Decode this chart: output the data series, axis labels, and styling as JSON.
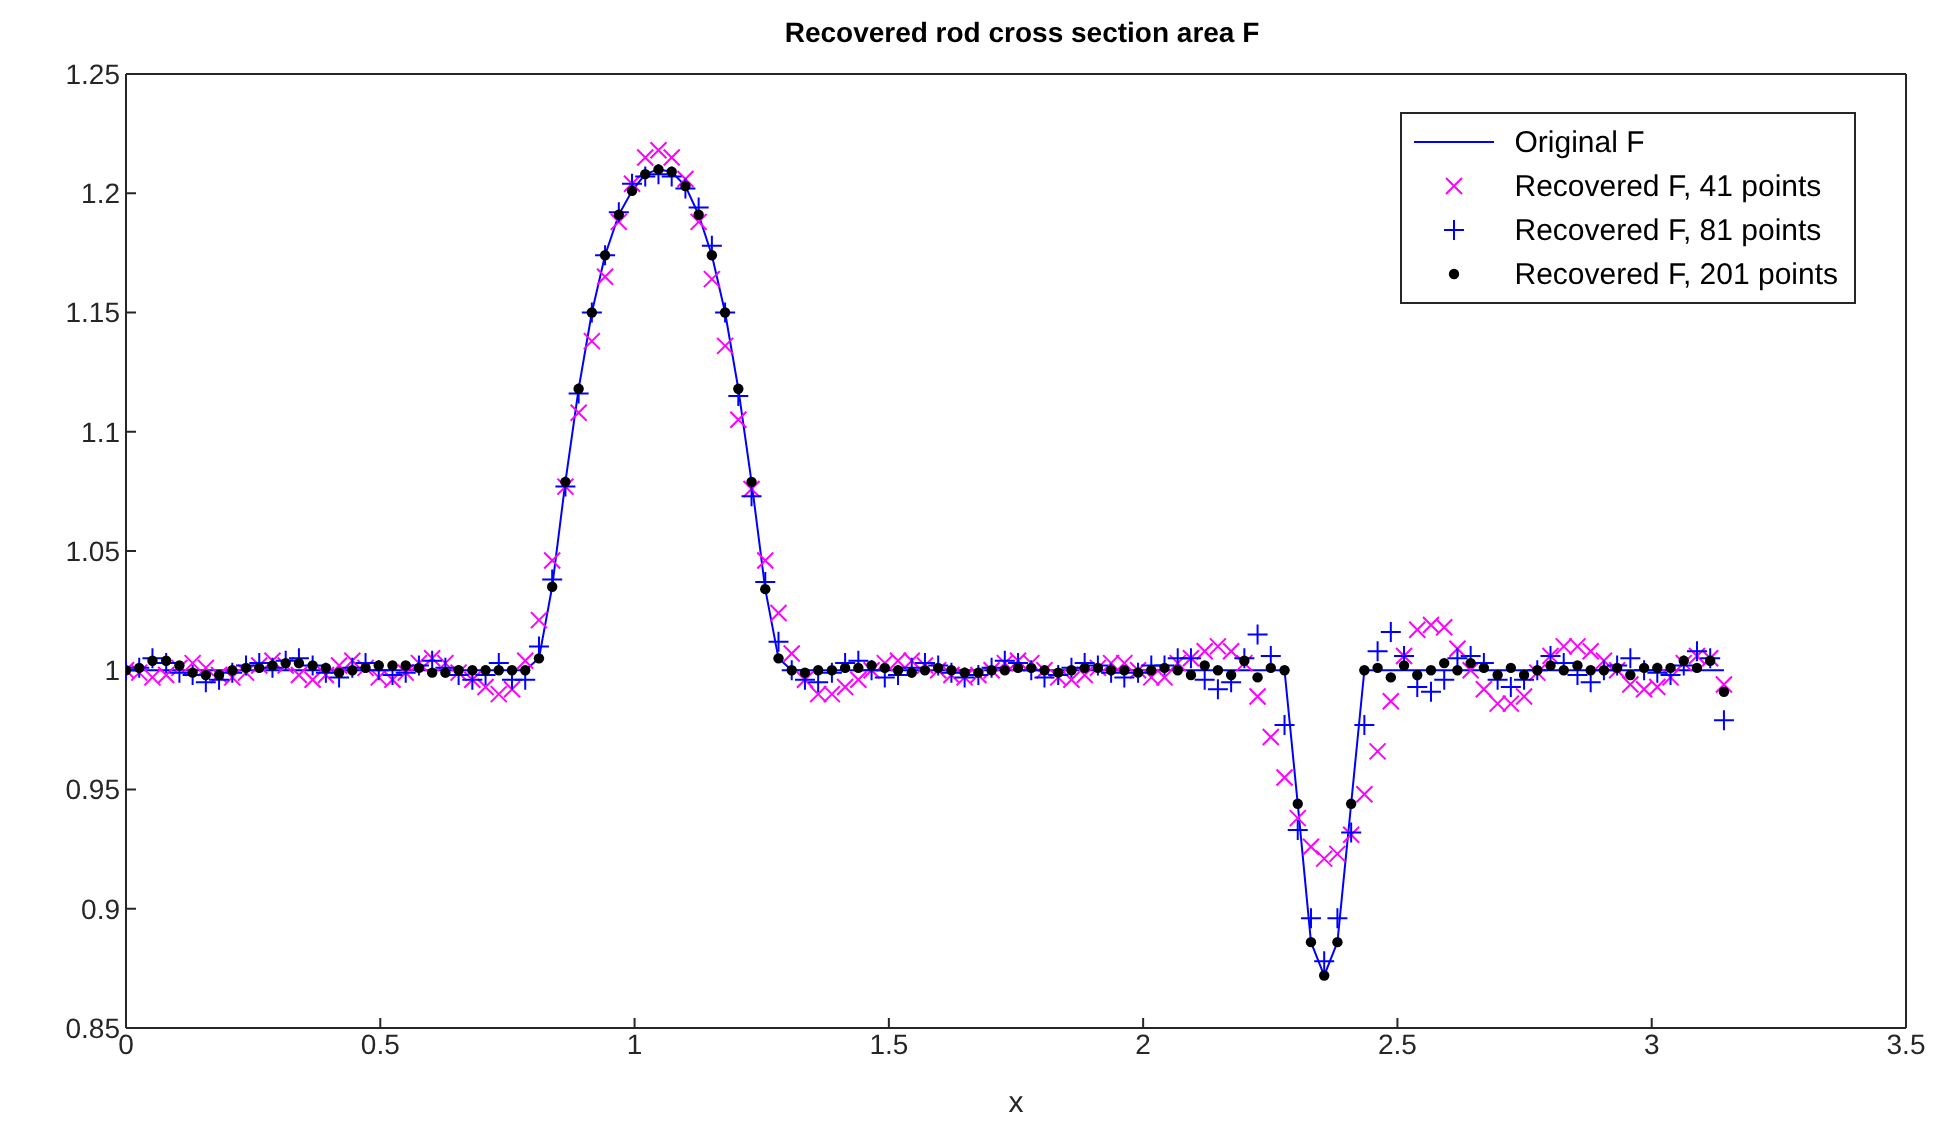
{
  "chart_data": {
    "type": "scatter",
    "title": "Recovered rod cross section area F",
    "xlabel": "x",
    "x": [
      0,
      0.026,
      0.052,
      0.079,
      0.105,
      0.131,
      0.157,
      0.183,
      0.209,
      0.236,
      0.262,
      0.288,
      0.314,
      0.34,
      0.367,
      0.393,
      0.419,
      0.445,
      0.471,
      0.497,
      0.524,
      0.55,
      0.576,
      0.602,
      0.628,
      0.654,
      0.681,
      0.707,
      0.733,
      0.759,
      0.785,
      0.812,
      0.838,
      0.864,
      0.89,
      0.916,
      0.942,
      0.969,
      0.995,
      1.021,
      1.047,
      1.073,
      1.1,
      1.126,
      1.152,
      1.178,
      1.204,
      1.23,
      1.257,
      1.283,
      1.309,
      1.335,
      1.361,
      1.388,
      1.414,
      1.44,
      1.466,
      1.492,
      1.518,
      1.545,
      1.571,
      1.597,
      1.623,
      1.649,
      1.676,
      1.702,
      1.728,
      1.754,
      1.78,
      1.806,
      1.833,
      1.859,
      1.885,
      1.911,
      1.937,
      1.963,
      1.99,
      2.016,
      2.042,
      2.068,
      2.094,
      2.121,
      2.147,
      2.173,
      2.199,
      2.225,
      2.251,
      2.278,
      2.304,
      2.33,
      2.356,
      2.382,
      2.409,
      2.435,
      2.461,
      2.487,
      2.513,
      2.539,
      2.566,
      2.592,
      2.618,
      2.644,
      2.67,
      2.697,
      2.723,
      2.749,
      2.775,
      2.801,
      2.827,
      2.854,
      2.88,
      2.906,
      2.932,
      2.958,
      2.985,
      3.011,
      3.037,
      3.063,
      3.089,
      3.115,
      3.142
    ],
    "series": [
      {
        "name": "Original F",
        "type": "line",
        "color": "#0000ff",
        "marker": "none",
        "line_style": "solid",
        "x": [
          0,
          0.759,
          0.785,
          0.812,
          0.838,
          0.864,
          0.89,
          0.916,
          0.942,
          0.969,
          0.995,
          1.021,
          1.047,
          1.073,
          1.1,
          1.126,
          1.152,
          1.178,
          1.204,
          1.23,
          1.257,
          1.283,
          1.309,
          1.335,
          2.251,
          2.278,
          2.304,
          2.33,
          2.356,
          2.382,
          2.409,
          2.435,
          2.461,
          3.142
        ],
        "values": [
          1.0,
          1.0,
          1.0,
          1.005,
          1.035,
          1.079,
          1.118,
          1.15,
          1.174,
          1.191,
          1.201,
          1.208,
          1.21,
          1.209,
          1.203,
          1.191,
          1.174,
          1.15,
          1.118,
          1.079,
          1.034,
          1.005,
          1.0,
          1.0,
          1.0,
          1.0,
          0.944,
          0.886,
          0.872,
          0.886,
          0.944,
          1.0,
          1.0,
          1.0
        ]
      },
      {
        "name": "Recovered F, 41 points",
        "color": "#ff00ff",
        "marker": "cross",
        "values": [
          1.0,
          0.999,
          0.997,
          0.998,
          1.001,
          1.003,
          1.001,
          0.998,
          0.997,
          0.999,
          1.002,
          1.004,
          1.002,
          0.998,
          0.996,
          0.998,
          1.002,
          1.004,
          1.001,
          0.997,
          0.996,
          0.999,
          1.003,
          1.005,
          1.003,
          0.999,
          0.996,
          0.993,
          0.99,
          0.992,
          1.004,
          1.021,
          1.046,
          1.077,
          1.108,
          1.138,
          1.165,
          1.188,
          1.204,
          1.215,
          1.218,
          1.215,
          1.206,
          1.188,
          1.164,
          1.136,
          1.105,
          1.076,
          1.046,
          1.024,
          1.007,
          0.996,
          0.99,
          0.99,
          0.993,
          0.996,
          1.0,
          1.003,
          1.004,
          1.004,
          1.002,
          1.0,
          0.998,
          0.997,
          0.998,
          1.0,
          1.003,
          1.004,
          1.003,
          1.0,
          0.997,
          0.996,
          0.998,
          1.001,
          1.003,
          1.003,
          1.0,
          0.997,
          0.997,
          1.003,
          1.005,
          1.008,
          1.01,
          1.008,
          1.003,
          0.989,
          0.972,
          0.955,
          0.938,
          0.926,
          0.921,
          0.923,
          0.931,
          0.948,
          0.966,
          0.987,
          1.006,
          1.017,
          1.019,
          1.018,
          1.009,
          1.0,
          0.992,
          0.986,
          0.986,
          0.989,
          0.999,
          1.006,
          1.01,
          1.01,
          1.008,
          1.004,
          1.0,
          0.994,
          0.992,
          0.993,
          0.997,
          1.003,
          1.006,
          1.005,
          0.994
        ]
      },
      {
        "name": "Recovered F, 81 points",
        "color": "#0000ff",
        "marker": "plus",
        "values": [
          1.0,
          1.001,
          1.005,
          1.003,
          0.999,
          0.998,
          0.995,
          0.996,
          0.999,
          1.002,
          1.003,
          1.001,
          1.004,
          1.005,
          1.002,
          0.999,
          0.997,
          1.001,
          1.003,
          1.0,
          0.998,
          0.999,
          1.002,
          1.004,
          1.001,
          0.998,
          0.996,
          0.998,
          1.003,
          0.996,
          0.996,
          1.01,
          1.038,
          1.077,
          1.116,
          1.15,
          1.174,
          1.192,
          1.204,
          1.207,
          1.208,
          1.207,
          1.202,
          1.194,
          1.178,
          1.15,
          1.115,
          1.073,
          1.037,
          1.012,
          1.0,
          0.996,
          0.995,
          0.999,
          1.003,
          1.004,
          1.0,
          0.997,
          0.998,
          1.001,
          1.003,
          1.002,
          0.999,
          0.997,
          0.998,
          1.001,
          1.004,
          1.003,
          1.0,
          0.997,
          0.998,
          1.001,
          1.003,
          1.002,
          0.999,
          0.997,
          0.999,
          1.002,
          1.002,
          1.005,
          1.005,
          0.996,
          0.992,
          0.995,
          1.005,
          1.015,
          1.006,
          0.977,
          0.933,
          0.896,
          0.878,
          0.896,
          0.932,
          0.977,
          1.008,
          1.016,
          1.006,
          0.993,
          0.991,
          0.996,
          1.005,
          1.006,
          1.003,
          0.996,
          0.993,
          0.996,
          1.0,
          1.006,
          1.003,
          0.998,
          0.995,
          1.0,
          1.002,
          1.005,
          1.0,
          0.999,
          0.998,
          1.002,
          1.008,
          1.005,
          0.979
        ]
      },
      {
        "name": "Recovered F, 201 points",
        "color": "#000000",
        "marker": "circle",
        "values": [
          1.0,
          1.001,
          1.004,
          1.004,
          1.002,
          0.999,
          0.998,
          0.998,
          1.0,
          1.001,
          1.001,
          1.002,
          1.003,
          1.003,
          1.002,
          1.001,
          0.999,
          1.0,
          1.001,
          1.002,
          1.002,
          1.002,
          1.001,
          0.999,
          0.999,
          1.0,
          1.0,
          1.0,
          1.0,
          1.0,
          1.0,
          1.005,
          1.035,
          1.079,
          1.118,
          1.15,
          1.174,
          1.191,
          1.201,
          1.208,
          1.21,
          1.209,
          1.203,
          1.191,
          1.174,
          1.15,
          1.118,
          1.079,
          1.034,
          1.005,
          1.0,
          0.999,
          1.0,
          1.0,
          1.001,
          1.001,
          1.002,
          1.001,
          1.0,
          0.999,
          1.0,
          1.001,
          1.0,
          0.999,
          0.999,
          1.0,
          1.0,
          1.001,
          1.001,
          1.0,
          0.999,
          1.0,
          1.001,
          1.001,
          1.0,
          1.0,
          0.999,
          1.0,
          1.001,
          1.0,
          0.998,
          1.002,
          1.0,
          0.998,
          1.004,
          0.997,
          1.001,
          1.0,
          0.944,
          0.886,
          0.872,
          0.886,
          0.944,
          1.0,
          1.001,
          0.997,
          1.002,
          0.998,
          1.0,
          1.003,
          1.0,
          1.003,
          1.001,
          0.998,
          1.001,
          0.998,
          1.0,
          1.002,
          1.0,
          1.002,
          1.0,
          1.0,
          1.001,
          0.998,
          1.001,
          1.001,
          1.001,
          1.004,
          1.001,
          1.004,
          0.991
        ]
      }
    ],
    "xlim": [
      0,
      3.5
    ],
    "xticks": [
      0,
      0.5,
      1,
      1.5,
      2,
      2.5,
      3,
      3.5
    ],
    "ylim": [
      0.85,
      1.25
    ],
    "yticks": [
      0.85,
      0.9,
      0.95,
      1,
      1.05,
      1.1,
      1.15,
      1.2,
      1.25
    ],
    "legend": "top right"
  }
}
